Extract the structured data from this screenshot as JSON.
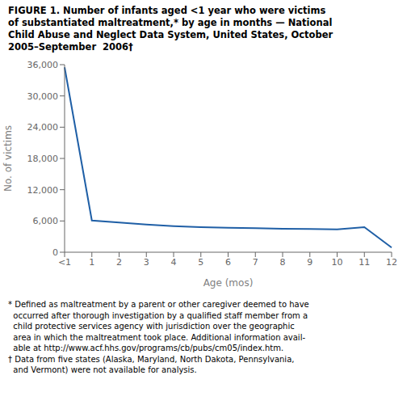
{
  "chart_data": {
    "type": "line",
    "title": "FIGURE 1. Number of infants aged <1 year who were victims\nof substantiated maltreatment,* by age in months — National\nChild Abuse and Neglect Data System, United States, October\n2005–September  2006†",
    "xlabel": "Age (mos)",
    "ylabel": "No. of victims",
    "categories": [
      "<1",
      "1",
      "2",
      "3",
      "4",
      "5",
      "6",
      "7",
      "8",
      "9",
      "10",
      "11",
      "12"
    ],
    "values": [
      35500,
      6100,
      5700,
      5300,
      5000,
      4800,
      4700,
      4600,
      4500,
      4450,
      4400,
      4800,
      900
    ],
    "color": "#1f5fa6",
    "ylim": [
      0,
      36000
    ],
    "yticks": [
      0,
      {
        "value": 6000,
        "label": "6,000"
      },
      {
        "value": 12000,
        "label": "12,000"
      },
      {
        "value": 18000,
        "label": "18,000"
      },
      {
        "value": 24000,
        "label": "24,000"
      },
      {
        "value": 30000,
        "label": "30,000"
      },
      {
        "value": 36000,
        "label": "36,000"
      }
    ],
    "grid": false,
    "annotations": [
      "* Defined as maltreatment by a parent or other caregiver deemed to have",
      "  occurred after thorough investigation by a qualified staff member from a",
      "  child protective services agency with jurisdiction over the geographic",
      "  area in which the maltreatment took place. Additional information avail-",
      "  able at http://www.acf.hhs.gov/programs/cb/pubs/cm05/index.htm.",
      "† Data from five states (Alaska, Maryland, North Dakota, Pennsylvania,",
      "  and Vermont) were not available for analysis."
    ]
  }
}
